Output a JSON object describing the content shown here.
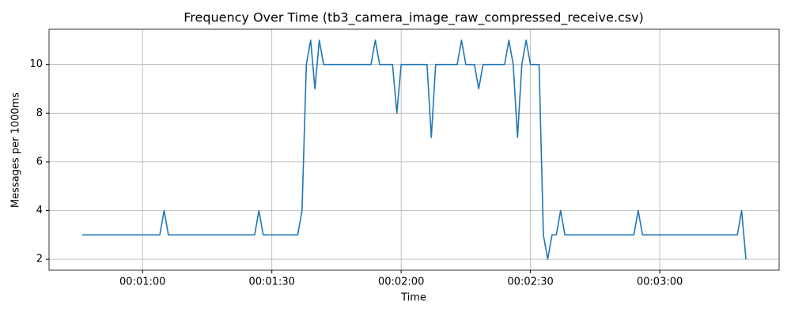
{
  "chart_data": {
    "type": "line",
    "title": "Frequency Over Time (tb3_camera_image_raw_compressed_receive.csv)",
    "x_label": "Time",
    "y_label": "Messages per 1000ms",
    "x": [
      46,
      47,
      48,
      49,
      50,
      51,
      52,
      53,
      54,
      55,
      56,
      57,
      58,
      59,
      60,
      61,
      62,
      63,
      64,
      65,
      66,
      67,
      68,
      69,
      70,
      71,
      72,
      73,
      74,
      75,
      76,
      77,
      78,
      79,
      80,
      81,
      82,
      83,
      84,
      85,
      86,
      87,
      88,
      89,
      90,
      91,
      92,
      93,
      94,
      95,
      96,
      97,
      98,
      99,
      100,
      101,
      102,
      103,
      104,
      105,
      106,
      107,
      108,
      109,
      110,
      111,
      112,
      113,
      114,
      115,
      116,
      117,
      118,
      119,
      120,
      121,
      122,
      123,
      124,
      125,
      126,
      127,
      128,
      129,
      130,
      131,
      132,
      133,
      134,
      135,
      136,
      137,
      138,
      139,
      140,
      141,
      142,
      143,
      144,
      145,
      146,
      147,
      148,
      149,
      150,
      151,
      152,
      153,
      154,
      155,
      156,
      157,
      158,
      159,
      160,
      161,
      162,
      163,
      164,
      165,
      166,
      167,
      168,
      169,
      170,
      171,
      172,
      173,
      174,
      175,
      176,
      177,
      178,
      179,
      180,
      181,
      182,
      183,
      184,
      185,
      186,
      187,
      188,
      189,
      190,
      191,
      192,
      193,
      194,
      195,
      196,
      197,
      198,
      199,
      200
    ],
    "series": [
      {
        "name": "Frequency",
        "color": "#1f77b4",
        "values": [
          3,
          3,
          3,
          3,
          3,
          3,
          3,
          3,
          3,
          3,
          3,
          3,
          3,
          3,
          3,
          3,
          3,
          3,
          3,
          4,
          3,
          3,
          3,
          3,
          3,
          3,
          3,
          3,
          3,
          3,
          3,
          3,
          3,
          3,
          3,
          3,
          3,
          3,
          3,
          3,
          3,
          4,
          3,
          3,
          3,
          3,
          3,
          3,
          3,
          3,
          3,
          4,
          10,
          11,
          9,
          11,
          10,
          10,
          10,
          10,
          10,
          10,
          10,
          10,
          10,
          10,
          10,
          10,
          11,
          10,
          10,
          10,
          10,
          8,
          10,
          10,
          10,
          10,
          10,
          10,
          10,
          7,
          10,
          10,
          10,
          10,
          10,
          10,
          11,
          10,
          10,
          10,
          9,
          10,
          10,
          10,
          10,
          10,
          10,
          11,
          10,
          7,
          10,
          11,
          10,
          10,
          10,
          3,
          2,
          3,
          3,
          4,
          3,
          3,
          3,
          3,
          3,
          3,
          3,
          3,
          3,
          3,
          3,
          3,
          3,
          3,
          3,
          3,
          3,
          4,
          3,
          3,
          3,
          3,
          3,
          3,
          3,
          3,
          3,
          3,
          3,
          3,
          3,
          3,
          3,
          3,
          3,
          3,
          3,
          3,
          3,
          3,
          3,
          4,
          2
        ]
      }
    ],
    "xlim": [
      38.3,
      207.7
    ],
    "ylim": [
      1.55,
      11.45
    ],
    "xticks": [
      {
        "value": 60,
        "label": "00:01:00"
      },
      {
        "value": 90,
        "label": "00:01:30"
      },
      {
        "value": 120,
        "label": "00:02:00"
      },
      {
        "value": 150,
        "label": "00:02:30"
      },
      {
        "value": 180,
        "label": "00:03:00"
      }
    ],
    "yticks": [
      2,
      4,
      6,
      8,
      10
    ],
    "grid": true
  }
}
